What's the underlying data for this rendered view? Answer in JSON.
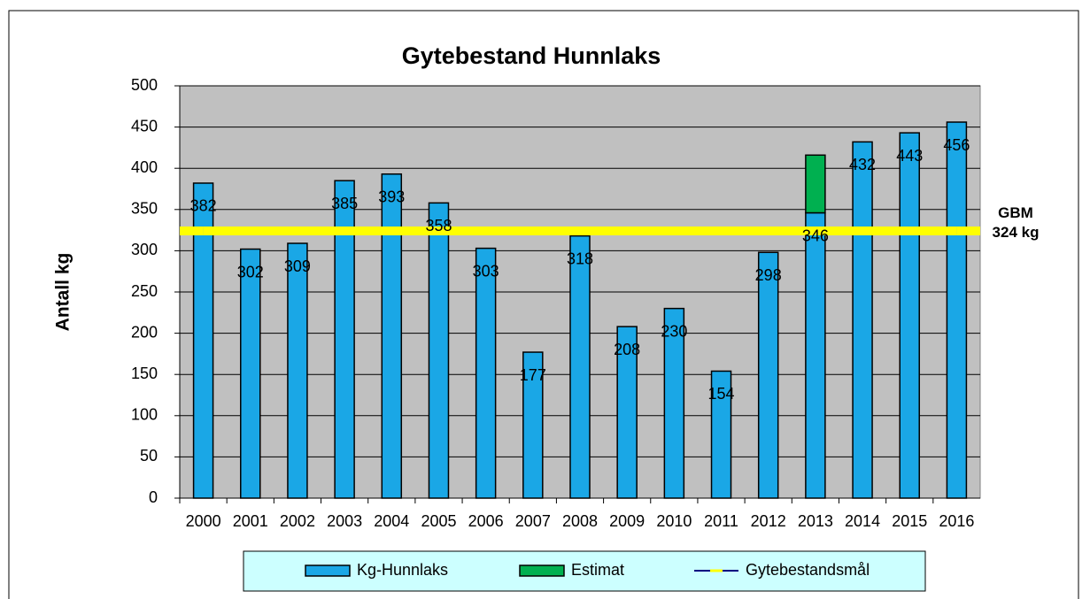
{
  "chart_data": {
    "type": "bar",
    "title": "Gytebestand Hunnlaks",
    "y_label": "Antall kg",
    "annotation": "GBM 324 kg",
    "categories": [
      "2000",
      "2001",
      "2002",
      "2003",
      "2004",
      "2005",
      "2006",
      "2007",
      "2008",
      "2009",
      "2010",
      "2011",
      "2012",
      "2013",
      "2014",
      "2015",
      "2016"
    ],
    "series": [
      {
        "name": "Kg-Hunnlaks",
        "color": "#1aa7e6",
        "values": [
          382,
          302,
          309,
          385,
          393,
          358,
          303,
          177,
          318,
          208,
          230,
          154,
          298,
          346,
          432,
          443,
          456
        ]
      },
      {
        "name": "Estimat",
        "color": "#00b050",
        "stacked": true,
        "values": [
          null,
          null,
          null,
          null,
          null,
          null,
          null,
          null,
          null,
          null,
          null,
          null,
          null,
          70,
          null,
          null,
          null
        ]
      },
      {
        "name": "Gytebestandsmål",
        "type": "line",
        "color": "#ffff00",
        "values": [
          324,
          324,
          324,
          324,
          324,
          324,
          324,
          324,
          324,
          324,
          324,
          324,
          324,
          324,
          324,
          324,
          324
        ]
      }
    ],
    "ylim": [
      0,
      500
    ],
    "yticks": [
      0,
      50,
      100,
      150,
      200,
      250,
      300,
      350,
      400,
      450,
      500
    ],
    "grid": true,
    "legend": "bottom"
  }
}
